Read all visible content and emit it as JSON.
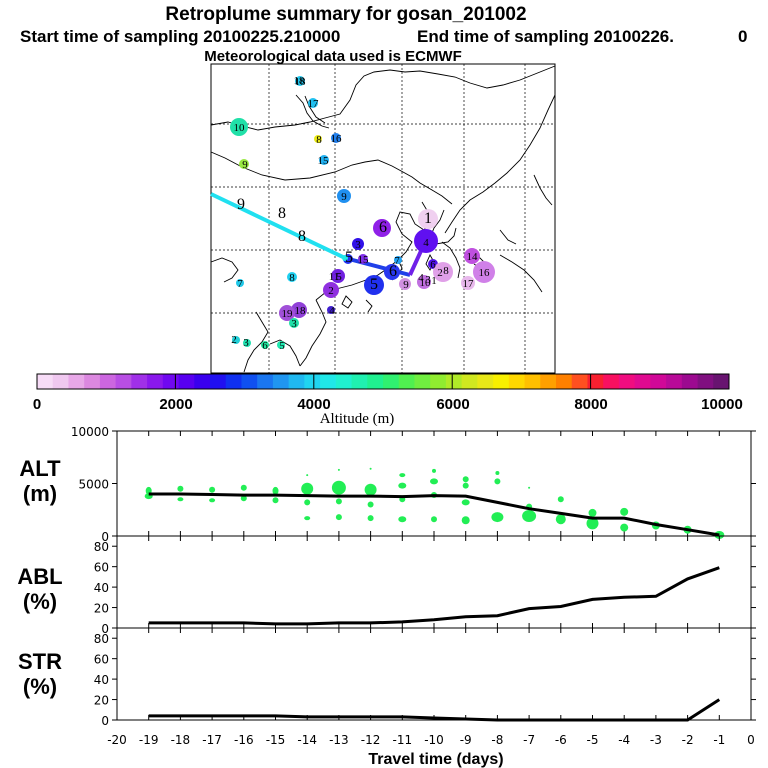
{
  "header": {
    "title": "Retroplume summary for gosan_201002",
    "start": "Start time of sampling 20100225.210000",
    "end": "End time of sampling 20100226.",
    "end_suffix": "0",
    "met": "Meteorological data used is ECMWF"
  },
  "colorbar": {
    "labels": [
      "0",
      "2000",
      "4000",
      "6000",
      "8000",
      "10000"
    ],
    "title": "Altitude (m)",
    "colors": [
      "#f7dcf7",
      "#f0c8f0",
      "#e8a8e8",
      "#dc88e0",
      "#cc66e0",
      "#b84ee4",
      "#a030e8",
      "#8a18ec",
      "#7008f0",
      "#5800f0",
      "#3a00ee",
      "#2010f0",
      "#1030f0",
      "#1050f0",
      "#1a76f0",
      "#2096f0",
      "#20b8f0",
      "#20d4f0",
      "#20e8e8",
      "#20f0d0",
      "#20f0b0",
      "#20f090",
      "#30f070",
      "#50f050",
      "#70ee40",
      "#90ec30",
      "#b0ea28",
      "#d0e820",
      "#e8e818",
      "#f8f000",
      "#ffd800",
      "#ffc000",
      "#ffa000",
      "#ff8000",
      "#ff5020",
      "#f82030",
      "#f81060",
      "#f00c80",
      "#e00a90",
      "#d00898",
      "#b80a98",
      "#9c0a90",
      "#801080",
      "#681470"
    ]
  },
  "map": {
    "day_labels": [
      "18",
      "17",
      "8",
      "16",
      "10",
      "15",
      "9",
      "9",
      "9",
      "8",
      "8",
      "7",
      "8",
      "6",
      "5",
      "15",
      "1",
      "7",
      "6",
      "5",
      "5",
      "2",
      "3",
      "4",
      "6",
      "9",
      "10",
      "2",
      "14",
      "16",
      "17",
      "18",
      "19",
      "4",
      "3",
      "2",
      "3",
      "6",
      "5",
      "4",
      "3",
      "1",
      "8",
      "18",
      "11"
    ]
  },
  "chart_data": [
    {
      "type": "line",
      "name": "ALT",
      "ylabel": "ALT",
      "yunit": "(m)",
      "ylim": [
        0,
        10000
      ],
      "yticks": [
        "0",
        "5000",
        "10000"
      ],
      "x": [
        -19,
        -18,
        -17,
        -16,
        -15,
        -14,
        -13,
        -12,
        -11,
        -10,
        -9,
        -8,
        -7,
        -6,
        -5,
        -4,
        -3,
        -2,
        -1
      ],
      "values": [
        4000,
        4000,
        3950,
        3900,
        3900,
        3850,
        3800,
        3800,
        3750,
        3850,
        3800,
        3200,
        2600,
        2150,
        1700,
        1700,
        1100,
        600,
        100
      ]
    },
    {
      "type": "line",
      "name": "ABL",
      "ylabel": "ABL",
      "yunit": "(%)",
      "ylim": [
        0,
        90
      ],
      "yticks": [
        "0",
        "20",
        "40",
        "60",
        "80"
      ],
      "x": [
        -19,
        -18,
        -17,
        -16,
        -15,
        -14,
        -13,
        -12,
        -11,
        -10,
        -9,
        -8,
        -7,
        -6,
        -5,
        -4,
        -3,
        -2,
        -1
      ],
      "values": [
        5,
        5,
        5,
        5,
        4,
        4,
        5,
        5,
        6,
        8,
        11,
        12,
        19,
        21,
        28,
        30,
        31,
        48,
        59
      ]
    },
    {
      "type": "line",
      "name": "STR",
      "ylabel": "STR",
      "yunit": "(%)",
      "ylim": [
        0,
        90
      ],
      "yticks": [
        "0",
        "20",
        "40",
        "60",
        "80"
      ],
      "x": [
        -19,
        -18,
        -17,
        -16,
        -15,
        -14,
        -13,
        -12,
        -11,
        -10,
        -9,
        -8,
        -7,
        -6,
        -5,
        -4,
        -3,
        -2,
        -1
      ],
      "values": [
        4,
        4,
        4,
        4,
        4,
        3,
        3,
        3,
        3,
        2,
        1,
        0,
        0,
        0,
        0,
        0,
        0,
        0,
        20
      ]
    }
  ],
  "xaxis": {
    "ticks": [
      "-20",
      "-19",
      "-18",
      "-17",
      "-16",
      "-15",
      "-14",
      "-13",
      "-12",
      "-11",
      "-10",
      "-9",
      "-8",
      "-7",
      "-6",
      "-5",
      "-4",
      "-3",
      "-2",
      "-1",
      "0"
    ],
    "label": "Travel time (days)"
  },
  "scatter_color": "#22ee55"
}
